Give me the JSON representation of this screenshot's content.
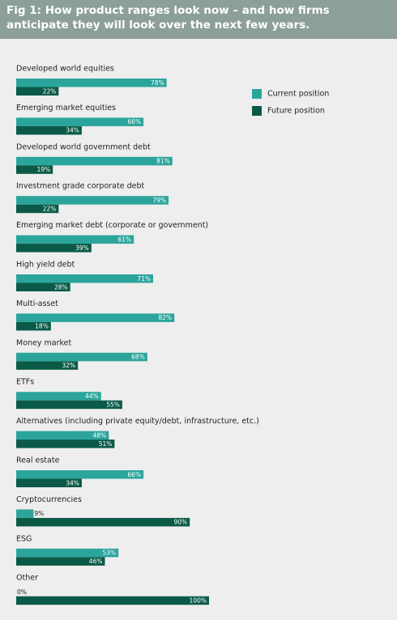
{
  "chart_data": {
    "type": "bar",
    "orientation": "horizontal",
    "title": "Fig 1: How product ranges look now – and how firms anticipate they will look over the next few years.",
    "categories": [
      "Developed world equities",
      "Emerging market equities",
      "Developed world government debt",
      "Investment grade corporate debt",
      "Emerging market debt (corporate or government)",
      "High yield debt",
      "Multi-asset",
      "Money market",
      "ETFs",
      "Alternatives (including private equity/debt, infrastructure, etc.)",
      "Real estate",
      "Cryptocurrencies",
      "ESG",
      "Other"
    ],
    "series": [
      {
        "name": "Current position",
        "color": "#2ba59b",
        "values": [
          78,
          66,
          81,
          79,
          61,
          71,
          82,
          68,
          44,
          48,
          66,
          9,
          53,
          0
        ],
        "value_labels": [
          "78%",
          "66%",
          "81%",
          "79%",
          "61%",
          "71%",
          "82%",
          "68%",
          "44%",
          "48%",
          "66%",
          "9%",
          "53%",
          "0%"
        ]
      },
      {
        "name": "Future position",
        "color": "#0b5a48",
        "values": [
          22,
          34,
          19,
          22,
          39,
          28,
          18,
          32,
          55,
          51,
          34,
          90,
          46,
          100
        ],
        "value_labels": [
          "22%",
          "34%",
          "19%",
          "22%",
          "39%",
          "28%",
          "18%",
          "32%",
          "55%",
          "51%",
          "34%",
          "90%",
          "46%",
          "100%"
        ]
      }
    ],
    "legend": "top-right"
  }
}
